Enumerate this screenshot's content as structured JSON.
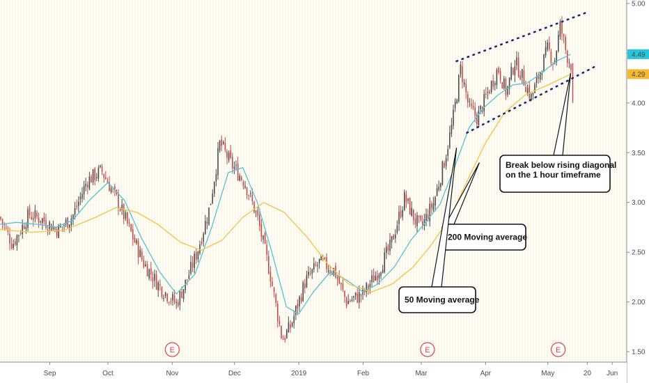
{
  "chart_data": {
    "type": "candlestick",
    "title": "",
    "xlabel": "",
    "ylabel": "",
    "ylim": [
      1.45,
      5.05
    ],
    "yticks": [
      "1.50",
      "2.00",
      "2.50",
      "3.00",
      "3.50",
      "4.00",
      "4.50",
      "5.00"
    ],
    "ytick_values": [
      1.5,
      2.0,
      2.5,
      3.0,
      3.5,
      4.0,
      4.5,
      5.0
    ],
    "xlim": [
      "2018-08-10",
      "2019-06-08"
    ],
    "xticks": [
      {
        "label": "Sep",
        "date": "2018-09-03"
      },
      {
        "label": "Oct",
        "date": "2018-10-01"
      },
      {
        "label": "Nov",
        "date": "2018-11-01"
      },
      {
        "label": "Dec",
        "date": "2018-12-01"
      },
      {
        "label": "2019",
        "date": "2019-01-01"
      },
      {
        "label": "Feb",
        "date": "2019-02-01"
      },
      {
        "label": "Mar",
        "date": "2019-03-01"
      },
      {
        "label": "Apr",
        "date": "2019-04-01"
      },
      {
        "label": "May",
        "date": "2019-05-01"
      },
      {
        "label": "20",
        "date": "2019-05-20"
      },
      {
        "label": "Jun",
        "date": "2019-06-01"
      }
    ],
    "price_labels": [
      {
        "value": "4.49",
        "price": 4.49,
        "color": "#26c6da"
      },
      {
        "value": "4.29",
        "price": 4.29,
        "color": "#f5b82e"
      }
    ],
    "price_path": [
      [
        "2018-08-10",
        2.85
      ],
      [
        "2018-08-16",
        2.58
      ],
      [
        "2018-08-24",
        2.88
      ],
      [
        "2018-08-31",
        2.82
      ],
      [
        "2018-09-07",
        2.72
      ],
      [
        "2018-09-14",
        2.86
      ],
      [
        "2018-09-21",
        3.22
      ],
      [
        "2018-09-28",
        3.32
      ],
      [
        "2018-10-06",
        3.0
      ],
      [
        "2018-10-12",
        2.7
      ],
      [
        "2018-10-18",
        2.4
      ],
      [
        "2018-10-26",
        2.15
      ],
      [
        "2018-11-03",
        1.98
      ],
      [
        "2018-11-08",
        2.22
      ],
      [
        "2018-11-13",
        2.5
      ],
      [
        "2018-11-19",
        2.95
      ],
      [
        "2018-11-24",
        3.6
      ],
      [
        "2018-11-29",
        3.4
      ],
      [
        "2018-12-06",
        3.2
      ],
      [
        "2018-12-12",
        2.85
      ],
      [
        "2018-12-18",
        2.3
      ],
      [
        "2018-12-24",
        1.62
      ],
      [
        "2018-12-28",
        1.75
      ],
      [
        "2019-01-04",
        2.2
      ],
      [
        "2019-01-11",
        2.4
      ],
      [
        "2019-01-18",
        2.32
      ],
      [
        "2019-01-24",
        2.0
      ],
      [
        "2019-02-01",
        2.08
      ],
      [
        "2019-02-08",
        2.3
      ],
      [
        "2019-02-14",
        2.55
      ],
      [
        "2019-02-21",
        3.05
      ],
      [
        "2019-02-26",
        2.82
      ],
      [
        "2019-03-01",
        2.75
      ],
      [
        "2019-03-07",
        3.0
      ],
      [
        "2019-03-12",
        3.4
      ],
      [
        "2019-03-16",
        3.8
      ],
      [
        "2019-03-20",
        4.35
      ],
      [
        "2019-03-24",
        3.95
      ],
      [
        "2019-03-28",
        3.85
      ],
      [
        "2019-04-03",
        4.15
      ],
      [
        "2019-04-07",
        4.35
      ],
      [
        "2019-04-11",
        4.1
      ],
      [
        "2019-04-15",
        4.42
      ],
      [
        "2019-04-19",
        4.25
      ],
      [
        "2019-04-23",
        4.05
      ],
      [
        "2019-04-27",
        4.3
      ],
      [
        "2019-05-01",
        4.55
      ],
      [
        "2019-05-04",
        4.4
      ],
      [
        "2019-05-07",
        4.78
      ],
      [
        "2019-05-10",
        4.49
      ],
      [
        "2019-05-13",
        4.35
      ]
    ],
    "series": [
      {
        "name": "50 Moving average",
        "color": "#4fc3d6",
        "points": [
          [
            "2018-08-10",
            2.78
          ],
          [
            "2018-08-18",
            2.8
          ],
          [
            "2018-08-28",
            2.78
          ],
          [
            "2018-09-06",
            2.75
          ],
          [
            "2018-09-14",
            2.82
          ],
          [
            "2018-09-22",
            3.02
          ],
          [
            "2018-10-01",
            3.2
          ],
          [
            "2018-10-09",
            3.02
          ],
          [
            "2018-10-17",
            2.65
          ],
          [
            "2018-10-26",
            2.3
          ],
          [
            "2018-11-03",
            2.08
          ],
          [
            "2018-11-12",
            2.28
          ],
          [
            "2018-11-20",
            2.75
          ],
          [
            "2018-11-28",
            3.3
          ],
          [
            "2018-12-05",
            3.35
          ],
          [
            "2018-12-12",
            3.0
          ],
          [
            "2018-12-19",
            2.5
          ],
          [
            "2018-12-26",
            1.95
          ],
          [
            "2019-01-01",
            1.88
          ],
          [
            "2019-01-08",
            2.1
          ],
          [
            "2019-01-16",
            2.3
          ],
          [
            "2019-01-24",
            2.22
          ],
          [
            "2019-02-01",
            2.1
          ],
          [
            "2019-02-08",
            2.18
          ],
          [
            "2019-02-16",
            2.35
          ],
          [
            "2019-02-24",
            2.62
          ],
          [
            "2019-03-03",
            2.8
          ],
          [
            "2019-03-10",
            2.98
          ],
          [
            "2019-03-17",
            3.35
          ],
          [
            "2019-03-24",
            3.75
          ],
          [
            "2019-03-31",
            3.95
          ],
          [
            "2019-04-07",
            4.08
          ],
          [
            "2019-04-14",
            4.18
          ],
          [
            "2019-04-21",
            4.2
          ],
          [
            "2019-04-28",
            4.3
          ],
          [
            "2019-05-05",
            4.42
          ],
          [
            "2019-05-12",
            4.49
          ]
        ]
      },
      {
        "name": "200 Moving average",
        "color": "#f5c242",
        "points": [
          [
            "2018-08-10",
            2.73
          ],
          [
            "2018-08-25",
            2.7
          ],
          [
            "2018-09-10",
            2.72
          ],
          [
            "2018-09-25",
            2.85
          ],
          [
            "2018-10-05",
            2.95
          ],
          [
            "2018-10-15",
            2.9
          ],
          [
            "2018-10-25",
            2.78
          ],
          [
            "2018-11-05",
            2.6
          ],
          [
            "2018-11-15",
            2.52
          ],
          [
            "2018-11-25",
            2.62
          ],
          [
            "2018-12-05",
            2.85
          ],
          [
            "2018-12-15",
            3.0
          ],
          [
            "2018-12-25",
            2.9
          ],
          [
            "2019-01-05",
            2.65
          ],
          [
            "2019-01-15",
            2.38
          ],
          [
            "2019-01-25",
            2.18
          ],
          [
            "2019-02-05",
            2.1
          ],
          [
            "2019-02-15",
            2.18
          ],
          [
            "2019-02-25",
            2.35
          ],
          [
            "2019-03-05",
            2.55
          ],
          [
            "2019-03-15",
            2.85
          ],
          [
            "2019-03-25",
            3.3
          ],
          [
            "2019-04-01",
            3.6
          ],
          [
            "2019-04-10",
            3.9
          ],
          [
            "2019-04-20",
            4.08
          ],
          [
            "2019-05-01",
            4.18
          ],
          [
            "2019-05-12",
            4.29
          ]
        ]
      }
    ],
    "trendlines": [
      {
        "name": "upper-channel",
        "from": [
          "2019-03-18",
          4.42
        ],
        "to": [
          "2019-05-21",
          4.92
        ]
      },
      {
        "name": "lower-channel",
        "from": [
          "2019-03-23",
          3.7
        ],
        "to": [
          "2019-05-25",
          4.38
        ]
      }
    ],
    "earnings_markers": [
      {
        "label": "E",
        "date": "2018-11-01"
      },
      {
        "label": "E",
        "date": "2019-03-04"
      },
      {
        "label": "E",
        "date": "2019-05-06"
      }
    ],
    "annotations": [
      {
        "text_lines": [
          "Break below rising diagonal",
          "on the 1 hour timeframe"
        ],
        "arrow_to": [
          "2019-05-12",
          4.3
        ]
      },
      {
        "text_lines": [
          "200 Moving average"
        ],
        "arrow_to": [
          "2019-03-29",
          3.4
        ]
      },
      {
        "text_lines": [
          "50 Moving average"
        ],
        "arrow_to": [
          "2019-03-18",
          3.55
        ]
      }
    ]
  }
}
